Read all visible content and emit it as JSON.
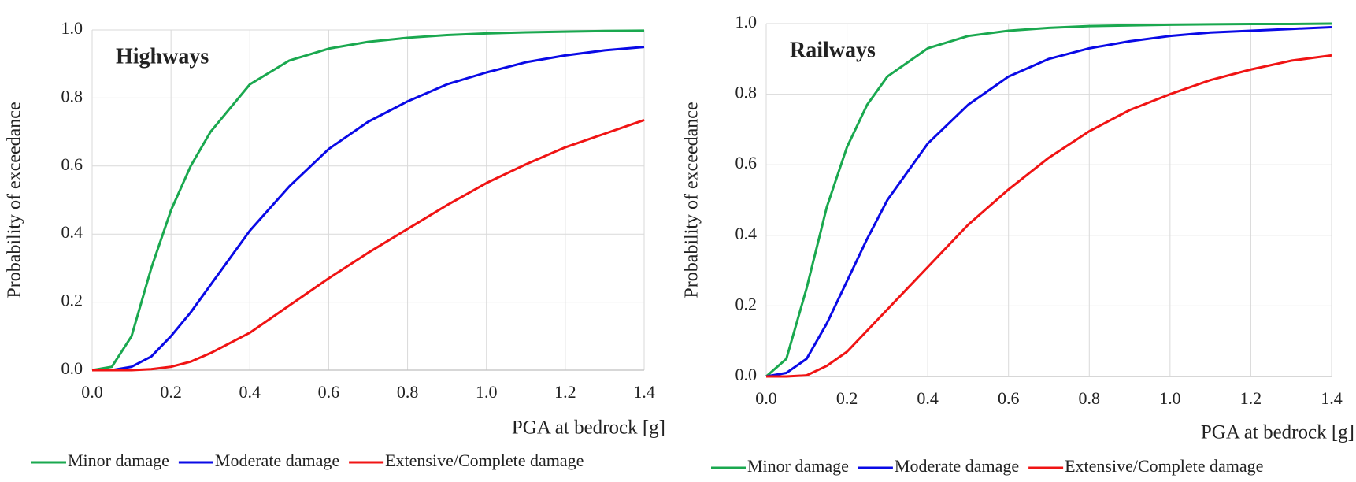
{
  "chart_data": [
    {
      "type": "line",
      "title": "Highways",
      "x_label": "PGA at bedrock  [g]",
      "y_label": "Probability  of exceedance",
      "x": [
        0,
        0.05,
        0.1,
        0.15,
        0.2,
        0.25,
        0.3,
        0.4,
        0.5,
        0.6,
        0.7,
        0.8,
        0.9,
        1.0,
        1.1,
        1.2,
        1.3,
        1.4
      ],
      "series": [
        {
          "name": "Minor damage",
          "color": "#1aa84f",
          "values": [
            0,
            0.01,
            0.1,
            0.3,
            0.47,
            0.6,
            0.7,
            0.84,
            0.91,
            0.945,
            0.965,
            0.977,
            0.985,
            0.99,
            0.993,
            0.995,
            0.997,
            0.998
          ]
        },
        {
          "name": "Moderate damage",
          "color": "#0a0ae6",
          "values": [
            0,
            0,
            0.01,
            0.04,
            0.1,
            0.17,
            0.25,
            0.41,
            0.54,
            0.65,
            0.73,
            0.79,
            0.84,
            0.875,
            0.905,
            0.925,
            0.94,
            0.95
          ]
        },
        {
          "name": "Extensive/Complete damage",
          "color": "#f01414",
          "values": [
            0,
            0,
            0,
            0.003,
            0.01,
            0.025,
            0.05,
            0.11,
            0.19,
            0.27,
            0.345,
            0.415,
            0.485,
            0.55,
            0.605,
            0.655,
            0.695,
            0.735
          ]
        }
      ],
      "xlim": [
        0,
        1.4
      ],
      "ylim": [
        0,
        1
      ],
      "xticks": [
        {
          "value": 0,
          "label": "0.0"
        },
        0.2,
        0.4,
        0.6,
        0.8,
        {
          "value": 1,
          "label": "1.0"
        },
        1.2,
        1.4
      ],
      "yticks": [
        {
          "value": 0,
          "label": "0.0"
        },
        0.2,
        0.4,
        0.6,
        0.8,
        {
          "value": 1,
          "label": "1.0"
        }
      ],
      "grid": true,
      "legend": "bottom"
    },
    {
      "type": "line",
      "title": "Railways",
      "x_label": "PGA at bedrock  [g]",
      "y_label": "Probability  of exceedance",
      "x": [
        0,
        0.05,
        0.1,
        0.15,
        0.2,
        0.25,
        0.3,
        0.4,
        0.5,
        0.6,
        0.7,
        0.8,
        0.9,
        1.0,
        1.1,
        1.2,
        1.3,
        1.4
      ],
      "series": [
        {
          "name": "Minor damage",
          "color": "#1aa84f",
          "values": [
            0,
            0.05,
            0.25,
            0.48,
            0.65,
            0.77,
            0.85,
            0.93,
            0.965,
            0.98,
            0.988,
            0.993,
            0.995,
            0.997,
            0.998,
            0.999,
            0.999,
            1.0
          ]
        },
        {
          "name": "Moderate damage",
          "color": "#0a0ae6",
          "values": [
            0,
            0.01,
            0.05,
            0.15,
            0.27,
            0.39,
            0.5,
            0.66,
            0.77,
            0.85,
            0.9,
            0.93,
            0.95,
            0.965,
            0.975,
            0.98,
            0.985,
            0.99
          ]
        },
        {
          "name": "Extensive/Complete damage",
          "color": "#f01414",
          "values": [
            0,
            0,
            0.003,
            0.03,
            0.07,
            0.13,
            0.19,
            0.31,
            0.43,
            0.53,
            0.62,
            0.695,
            0.755,
            0.8,
            0.84,
            0.87,
            0.895,
            0.91
          ]
        }
      ],
      "xlim": [
        0,
        1.4
      ],
      "ylim": [
        0,
        1
      ],
      "xticks": [
        {
          "value": 0,
          "label": "0.0"
        },
        0.2,
        0.4,
        0.6,
        0.8,
        {
          "value": 1,
          "label": "1.0"
        },
        1.2,
        1.4
      ],
      "yticks": [
        {
          "value": 0,
          "label": "0.0"
        },
        0.2,
        0.4,
        0.6,
        0.8,
        {
          "value": 1,
          "label": "1.0"
        }
      ],
      "grid": true,
      "legend": "bottom"
    }
  ]
}
